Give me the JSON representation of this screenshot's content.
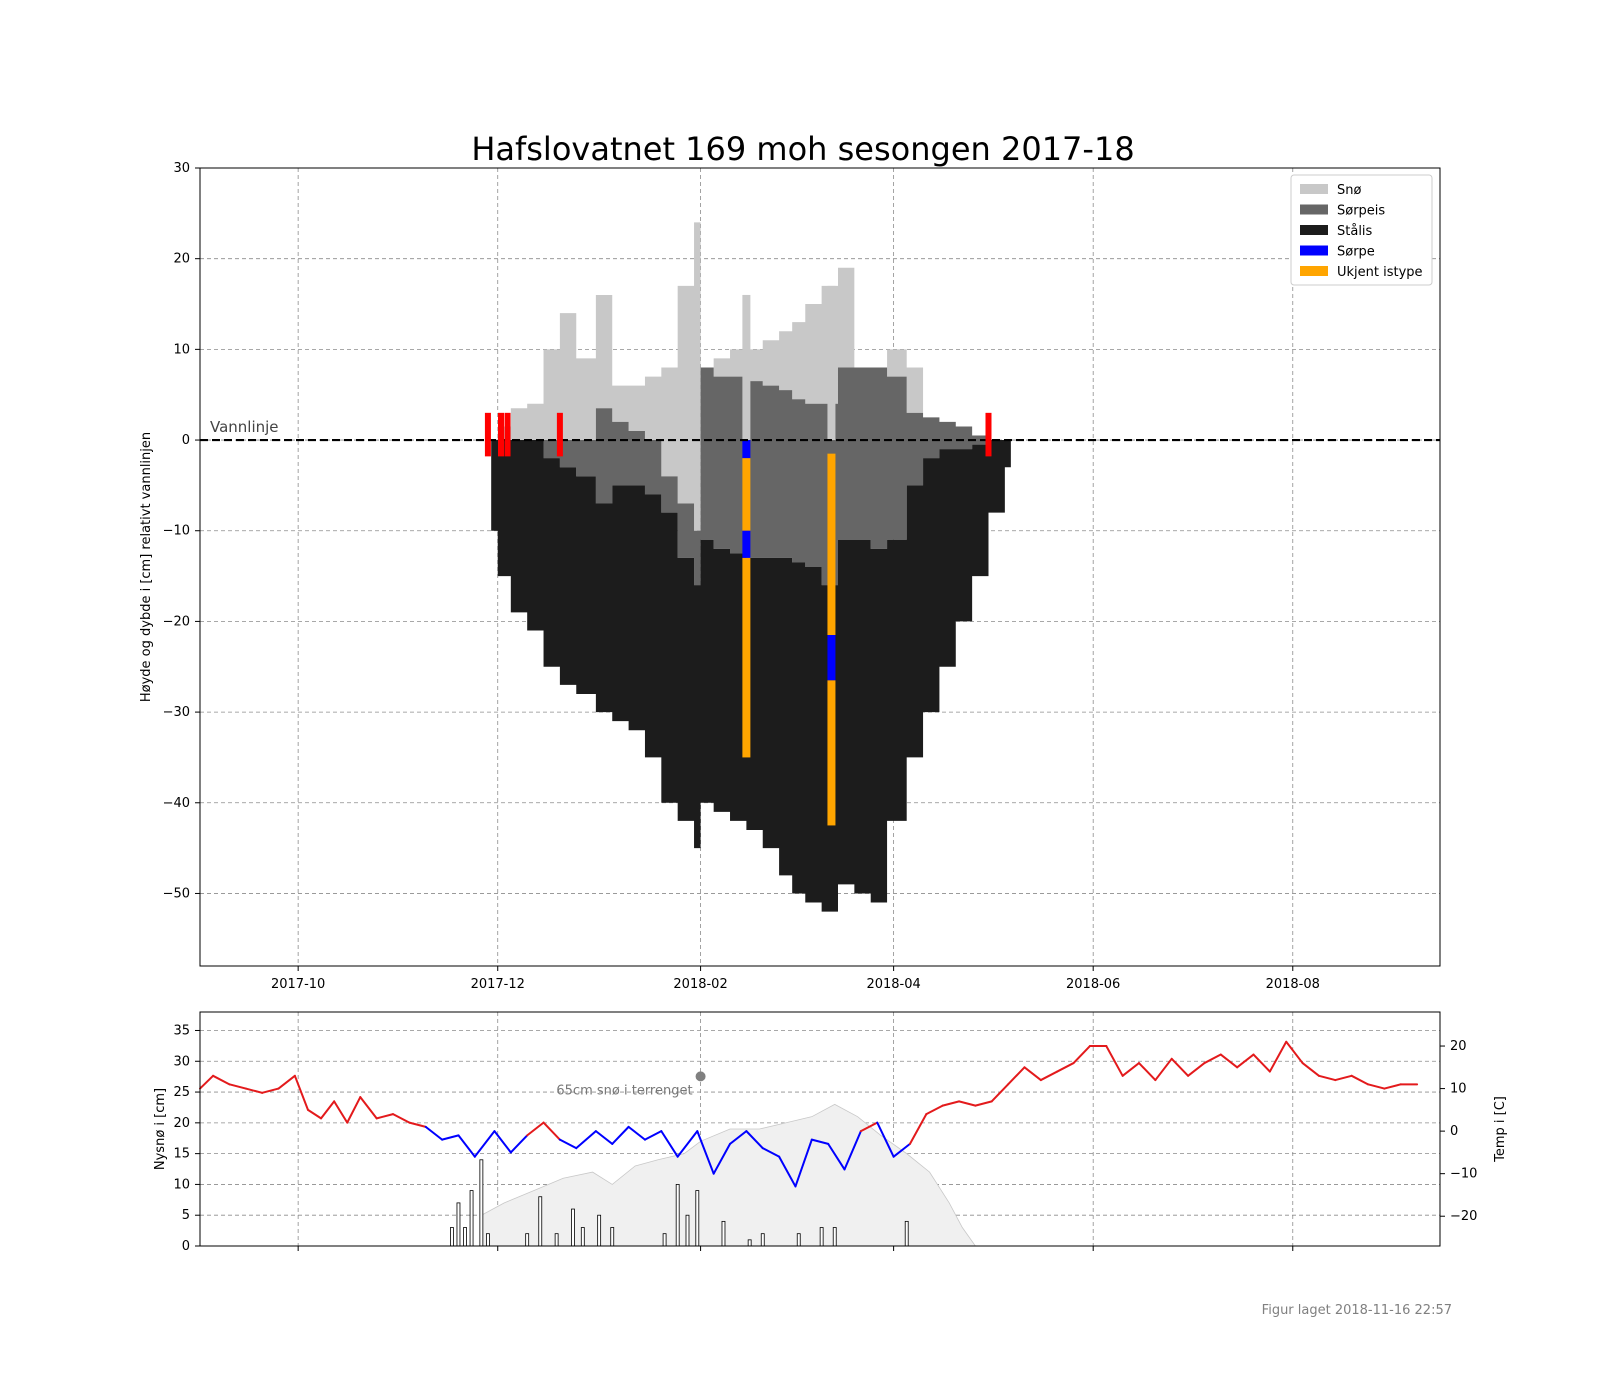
{
  "title": "Hafslovatnet 169 moh sesongen 2017-18",
  "footer": "Figur laget 2018-11-16 22:57",
  "colors": {
    "snow": "#c8c8c8",
    "slush_ice": "#666666",
    "black_ice": "#1c1c1c",
    "slush": "#0000ff",
    "unknown": "#ffa500",
    "marker": "#ff0000",
    "temp_warm": "#e31a1c",
    "temp_cold": "#0000ff",
    "snow_area": "#f0f0f0"
  },
  "chart_data": [
    {
      "type": "area",
      "title": "Hafslovatnet 169 moh sesongen 2017-18",
      "xlabel": "",
      "ylabel": "Høyde og dybde i [cm] relativt vannlinjen",
      "ylim": [
        -58,
        30
      ],
      "yticks": [
        30,
        20,
        10,
        0,
        -10,
        -20,
        -30,
        -40,
        -50
      ],
      "ytick_labels": [
        "30",
        "20",
        "10",
        "0",
        "−10",
        "−20",
        "−30",
        "−40",
        "−50"
      ],
      "xlim": [
        "2017-09-01",
        "2018-09-15"
      ],
      "xticks": [
        "2017-10",
        "2017-12",
        "2018-02",
        "2018-04",
        "2018-06",
        "2018-08"
      ],
      "grid": true,
      "legend": {
        "position": "top-right",
        "entries": [
          {
            "label": "Snø",
            "color": "#c8c8c8"
          },
          {
            "label": "Sørpeis",
            "color": "#666666"
          },
          {
            "label": "Stålis",
            "color": "#1c1c1c"
          },
          {
            "label": "Sørpe",
            "color": "#0000ff"
          },
          {
            "label": "Ukjent istype",
            "color": "#ffa500"
          }
        ]
      },
      "annotation": "Vannlinje",
      "dates": [
        "2017-11-29",
        "2017-12-01",
        "2017-12-05",
        "2017-12-10",
        "2017-12-15",
        "2017-12-20",
        "2017-12-25",
        "2017-12-31",
        "2018-01-05",
        "2018-01-10",
        "2018-01-15",
        "2018-01-20",
        "2018-01-25",
        "2018-01-30",
        "2018-02-01",
        "2018-02-05",
        "2018-02-10",
        "2018-02-15",
        "2018-02-20",
        "2018-02-25",
        "2018-03-01",
        "2018-03-05",
        "2018-03-10",
        "2018-03-15",
        "2018-03-20",
        "2018-03-25",
        "2018-03-30",
        "2018-04-05",
        "2018-04-10",
        "2018-04-15",
        "2018-04-20",
        "2018-04-25",
        "2018-04-30",
        "2018-05-05"
      ],
      "snow_top": [
        0,
        1.5,
        3.5,
        4,
        10,
        14,
        9,
        16,
        6,
        6,
        7,
        8,
        17,
        24,
        8,
        9,
        10,
        10,
        11,
        12,
        13,
        15,
        17,
        19,
        8,
        8,
        10,
        8,
        0,
        0,
        0,
        0,
        0,
        0
      ],
      "slush_ice_top": [
        0,
        0,
        0,
        0,
        0,
        0,
        0,
        3.5,
        2,
        1,
        0,
        -4,
        -7,
        -10,
        8,
        7,
        7,
        6.5,
        6,
        5.5,
        4.5,
        4,
        4,
        8,
        8,
        8,
        7,
        3,
        2.5,
        2,
        1.5,
        0.5,
        0,
        0
      ],
      "black_ice_top": [
        0,
        0,
        0,
        0,
        -2,
        -3,
        -4,
        -7,
        -5,
        -5,
        -6,
        -8,
        -13,
        -16,
        -11,
        -12,
        -12.5,
        -13,
        -13,
        -13,
        -13.5,
        -14,
        -16,
        -11,
        -11,
        -12,
        -11,
        -5,
        -2,
        -1,
        -1,
        -0.5,
        0,
        0
      ],
      "ice_bottom": [
        -10,
        -15,
        -19,
        -21,
        -25,
        -27,
        -28,
        -30,
        -31,
        -32,
        -35,
        -40,
        -42,
        -45,
        -40,
        -41,
        -42,
        -43,
        -45,
        -48,
        -50,
        -51,
        -52,
        -49,
        -50,
        -51,
        -42,
        -35,
        -30,
        -25,
        -20,
        -15,
        -8,
        -3
      ],
      "profiles": [
        {
          "date": "2018-02-15",
          "top": 16,
          "segments": [
            {
              "from": 0,
              "to": -2,
              "type": "slush"
            },
            {
              "from": -2,
              "to": -10,
              "type": "unknown"
            },
            {
              "from": -10,
              "to": -13,
              "type": "slush"
            },
            {
              "from": -13,
              "to": -35,
              "type": "unknown"
            }
          ]
        },
        {
          "date": "2018-03-13",
          "top": 17,
          "segments": [
            {
              "from": -1.5,
              "to": -21.5,
              "type": "unknown"
            },
            {
              "from": -21.5,
              "to": -26.5,
              "type": "slush"
            },
            {
              "from": -26.5,
              "to": -42.5,
              "type": "unknown"
            }
          ]
        }
      ],
      "markers": [
        {
          "date": "2017-11-28",
          "from": 3,
          "to": -1.8
        },
        {
          "date": "2017-12-02",
          "from": 3,
          "to": -1.8
        },
        {
          "date": "2017-12-04",
          "from": 3,
          "to": -1.8
        },
        {
          "date": "2017-12-20",
          "from": 3,
          "to": -1.8
        },
        {
          "date": "2018-04-30",
          "from": 3,
          "to": -1.8
        }
      ]
    },
    {
      "type": "line",
      "ylabel": "Nysnø i [cm]",
      "y2label": "Temp i [C]",
      "ylim": [
        0,
        38
      ],
      "yticks": [
        35,
        30,
        25,
        20,
        15,
        10,
        5,
        0
      ],
      "y2lim": [
        -27,
        28
      ],
      "y2ticks": [
        20,
        10,
        0,
        -10,
        -20
      ],
      "y2tick_labels": [
        "20",
        "10",
        "0",
        "−10",
        "−20"
      ],
      "annotation": {
        "text": "65cm snø i terrenget",
        "date": "2018-02-01"
      },
      "temperature_dates": [
        "2017-09-01",
        "2017-09-05",
        "2017-09-10",
        "2017-09-15",
        "2017-09-20",
        "2017-09-25",
        "2017-09-30",
        "2017-10-04",
        "2017-10-08",
        "2017-10-12",
        "2017-10-16",
        "2017-10-20",
        "2017-10-25",
        "2017-10-30",
        "2017-11-04",
        "2017-11-09",
        "2017-11-14",
        "2017-11-19",
        "2017-11-24",
        "2017-11-30",
        "2017-12-05",
        "2017-12-10",
        "2017-12-15",
        "2017-12-20",
        "2017-12-25",
        "2017-12-31",
        "2018-01-05",
        "2018-01-10",
        "2018-01-15",
        "2018-01-20",
        "2018-01-25",
        "2018-01-31",
        "2018-02-05",
        "2018-02-10",
        "2018-02-15",
        "2018-02-20",
        "2018-02-25",
        "2018-03-02",
        "2018-03-07",
        "2018-03-12",
        "2018-03-17",
        "2018-03-22",
        "2018-03-27",
        "2018-04-01",
        "2018-04-06",
        "2018-04-11",
        "2018-04-16",
        "2018-04-21",
        "2018-04-26",
        "2018-05-01",
        "2018-05-06",
        "2018-05-11",
        "2018-05-16",
        "2018-05-21",
        "2018-05-26",
        "2018-05-31",
        "2018-06-05",
        "2018-06-10",
        "2018-06-15",
        "2018-06-20",
        "2018-06-25",
        "2018-06-30",
        "2018-07-05",
        "2018-07-10",
        "2018-07-15",
        "2018-07-20",
        "2018-07-25",
        "2018-07-30",
        "2018-08-04",
        "2018-08-09",
        "2018-08-14",
        "2018-08-19",
        "2018-08-24",
        "2018-08-29",
        "2018-09-03",
        "2018-09-08"
      ],
      "temperature": [
        10,
        13,
        11,
        10,
        9,
        10,
        13,
        5,
        3,
        7,
        2,
        8,
        3,
        4,
        2,
        1,
        -2,
        -1,
        -6,
        0,
        -5,
        -1,
        2,
        -2,
        -4,
        0,
        -3,
        1,
        -2,
        0,
        -6,
        0,
        -10,
        -3,
        0,
        -4,
        -6,
        -13,
        -2,
        -3,
        -9,
        0,
        2,
        -6,
        -3,
        4,
        6,
        7,
        6,
        7,
        11,
        15,
        12,
        14,
        16,
        20,
        20,
        13,
        16,
        12,
        17,
        13,
        16,
        18,
        15,
        18,
        14,
        21,
        16,
        13,
        12,
        13,
        11,
        10,
        11,
        11
      ],
      "nysno_dates": [
        "2017-11-17",
        "2017-11-19",
        "2017-11-21",
        "2017-11-23",
        "2017-11-26",
        "2017-11-28",
        "2017-12-10",
        "2017-12-14",
        "2017-12-19",
        "2017-12-24",
        "2017-12-27",
        "2018-01-01",
        "2018-01-05",
        "2018-01-21",
        "2018-01-25",
        "2018-01-28",
        "2018-01-31",
        "2018-02-08",
        "2018-02-16",
        "2018-02-20",
        "2018-03-03",
        "2018-03-10",
        "2018-03-14",
        "2018-04-05"
      ],
      "nysno": [
        3,
        7,
        3,
        9,
        14,
        2,
        2,
        8,
        2,
        6,
        3,
        5,
        3,
        2,
        10,
        5,
        9,
        4,
        1,
        2,
        2,
        3,
        3,
        4
      ],
      "snow_depth_dates": [
        "2017-11-26",
        "2017-12-03",
        "2017-12-12",
        "2017-12-21",
        "2017-12-30",
        "2018-01-05",
        "2018-01-12",
        "2018-01-19",
        "2018-01-27",
        "2018-02-01",
        "2018-02-10",
        "2018-02-19",
        "2018-02-27",
        "2018-03-07",
        "2018-03-14",
        "2018-03-21",
        "2018-03-28",
        "2018-04-05",
        "2018-04-12",
        "2018-04-18",
        "2018-04-22",
        "2018-04-26"
      ],
      "snow_depth": [
        5,
        7,
        9,
        11,
        12,
        10,
        13,
        14,
        15,
        17,
        19,
        19,
        20,
        21,
        23,
        21,
        18,
        15,
        12,
        7,
        3,
        0
      ]
    }
  ]
}
